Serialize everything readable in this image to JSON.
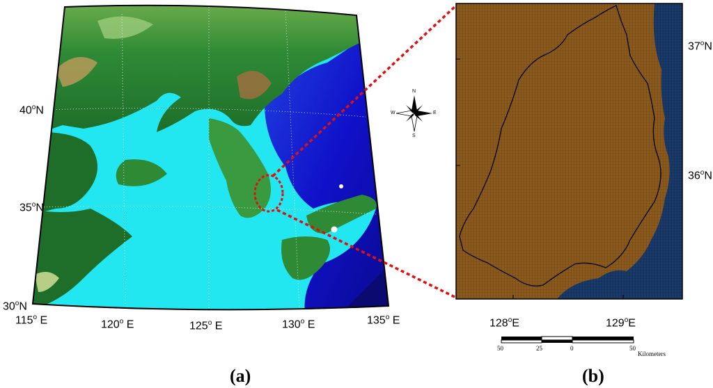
{
  "panel_a": {
    "lat_labels": [
      {
        "deg": "40",
        "sup": "o",
        "dir": "N"
      },
      {
        "deg": "35",
        "sup": "o",
        "dir": "N"
      },
      {
        "deg": "30",
        "sup": "o",
        "dir": "N"
      }
    ],
    "lon_labels": [
      {
        "deg": "115",
        "sup": "o",
        "dir": "E"
      },
      {
        "deg": "120",
        "sup": "o",
        "dir": "E"
      },
      {
        "deg": "125",
        "sup": "o",
        "dir": "E"
      },
      {
        "deg": "130",
        "sup": "o",
        "dir": "E"
      },
      {
        "deg": "135",
        "sup": "o",
        "dir": "E"
      }
    ],
    "compass": {
      "n": "N",
      "s": "S",
      "e": "E",
      "w": "W"
    },
    "caption": "(a)"
  },
  "panel_b": {
    "lat_labels": [
      {
        "deg": "37",
        "sup": "o",
        "dir": "N"
      },
      {
        "deg": "36",
        "sup": "o",
        "dir": "N"
      }
    ],
    "lon_labels": [
      {
        "deg": "128",
        "sup": "o",
        "dir": "E"
      },
      {
        "deg": "129",
        "sup": "o",
        "dir": "E"
      }
    ],
    "scale_bar": {
      "ticks": [
        "50",
        "25",
        "0",
        "50"
      ],
      "unit": "Kilometers"
    },
    "caption": "(b)"
  },
  "colors": {
    "land_low": "#1e6e2a",
    "land_high": "#c8b070",
    "shallow_sea": "#22e6f0",
    "deep_sea": "#1010c8",
    "grid_land": "#8b5a1e",
    "grid_sea": "#1a3a6a",
    "zoom_line": "#e01010"
  }
}
